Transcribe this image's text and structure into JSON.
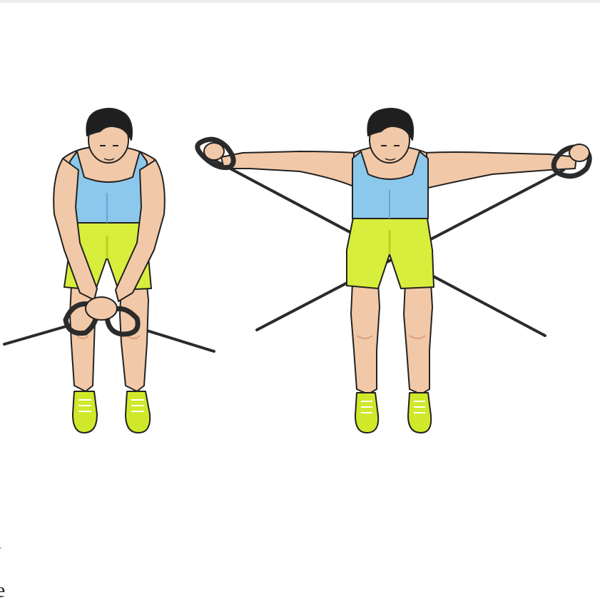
{
  "edge_text": {
    "line1": "l",
    "line2": "e"
  },
  "colors": {
    "skin": "#f2c9a8",
    "skin_shadow": "#d9a07c",
    "tank_top": "#8cc8ec",
    "tank_top_shadow": "#5fa8d8",
    "shorts": "#d8ee3c",
    "shorts_shadow": "#b8d21e",
    "shoes": "#cfe82a",
    "hair": "#1f1f1f",
    "band": "#2b2b2b",
    "outline": "#222222"
  },
  "figures": [
    {
      "pose": "start-position-hands-together"
    },
    {
      "pose": "end-position-arms-extended"
    }
  ]
}
